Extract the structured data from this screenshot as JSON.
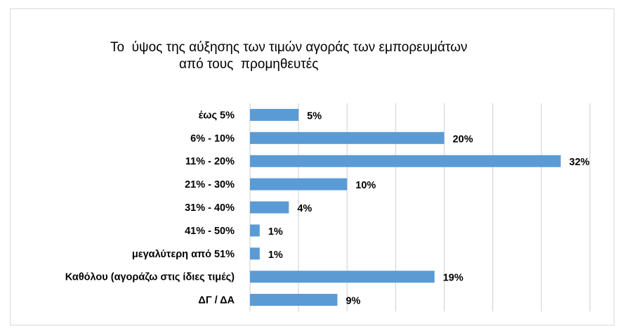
{
  "chart_data": {
    "type": "bar",
    "orientation": "horizontal",
    "title_line1": "Το  ύψος της αύξησης των τιμών αγοράς των εμπορευμάτων",
    "title_line2": "από τους  προμηθευτές",
    "categories": [
      "έως 5%",
      "6% - 10%",
      "11% - 20%",
      "21% - 30%",
      "31% - 40%",
      "41% - 50%",
      "μεγαλύτερη από 51%",
      "Καθόλου (αγοράζω στις ίδιες τιμές)",
      "ΔΓ / ΔΑ"
    ],
    "values": [
      5,
      20,
      32,
      10,
      4,
      1,
      1,
      19,
      9
    ],
    "data_labels": [
      "5%",
      "20%",
      "32%",
      "10%",
      "4%",
      "1%",
      "1%",
      "19%",
      "9%"
    ],
    "xlim": [
      0,
      35
    ],
    "grid_step": 5,
    "grid": true,
    "bar_color": "#5b9bd5",
    "xlabel": "",
    "ylabel": ""
  }
}
